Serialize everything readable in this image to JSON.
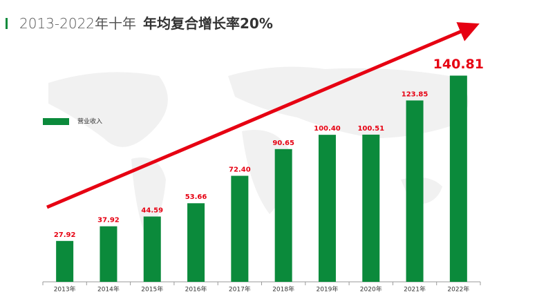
{
  "chart_data": {
    "type": "bar",
    "title_prefix": "2013-2022年十年",
    "title": "年均复合增长率20%",
    "categories": [
      "2013年",
      "2014年",
      "2015年",
      "2016年",
      "2017年",
      "2018年",
      "2019年",
      "2020年",
      "2021年",
      "2022年"
    ],
    "series": [
      {
        "name": "营业收入",
        "color": "#0b8a3b",
        "values": [
          27.92,
          37.92,
          44.59,
          53.66,
          72.4,
          90.65,
          100.4,
          100.51,
          123.85,
          140.81
        ],
        "value_labels": [
          "27.92",
          "37.92",
          "44.59",
          "53.66",
          "72.40",
          "90.65",
          "100.40",
          "100.51",
          "123.85",
          "140.81"
        ]
      }
    ],
    "value_label_color": "#e60012",
    "legend": "top-left"
  }
}
